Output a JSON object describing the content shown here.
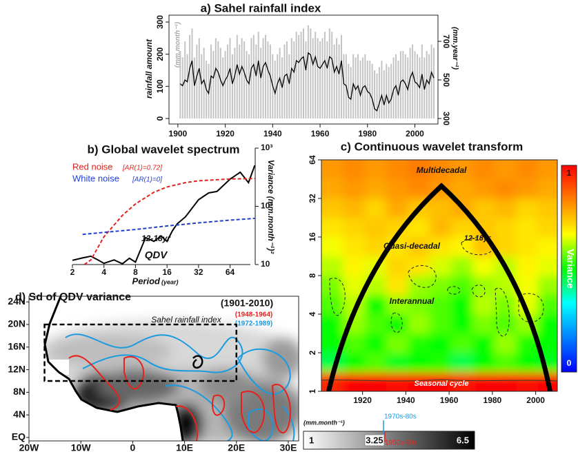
{
  "chart_data": [
    {
      "type": "line",
      "title": "a) Sahel rainfall index",
      "ylabel": "rainfall amount",
      "ylabel_unit": "(mm.month⁻¹)",
      "y2label": "(mm.year⁻¹)",
      "x": [
        1901,
        1902,
        1903,
        1904,
        1905,
        1906,
        1907,
        1908,
        1909,
        1910,
        1911,
        1912,
        1913,
        1914,
        1915,
        1916,
        1917,
        1918,
        1919,
        1920,
        1921,
        1922,
        1923,
        1924,
        1925,
        1926,
        1927,
        1928,
        1929,
        1930,
        1931,
        1932,
        1933,
        1934,
        1935,
        1936,
        1937,
        1938,
        1939,
        1940,
        1941,
        1942,
        1943,
        1944,
        1945,
        1946,
        1947,
        1948,
        1949,
        1950,
        1951,
        1952,
        1953,
        1954,
        1955,
        1956,
        1957,
        1958,
        1959,
        1960,
        1961,
        1962,
        1963,
        1964,
        1965,
        1966,
        1967,
        1968,
        1969,
        1970,
        1971,
        1972,
        1973,
        1974,
        1975,
        1976,
        1977,
        1978,
        1979,
        1980,
        1981,
        1982,
        1983,
        1984,
        1985,
        1986,
        1987,
        1988,
        1989,
        1990,
        1991,
        1992,
        1993,
        1994,
        1995,
        1996,
        1997,
        1998,
        1999,
        2000,
        2001,
        2002,
        2003,
        2004,
        2005,
        2006,
        2007,
        2008
      ],
      "series": [
        {
          "kind": "bar",
          "color": "#c4c4c4",
          "values": [
            210,
            190,
            240,
            200,
            260,
            280,
            190,
            230,
            250,
            200,
            220,
            180,
            170,
            230,
            210,
            250,
            240,
            220,
            190,
            210,
            230,
            250,
            200,
            220,
            260,
            230,
            250,
            240,
            210,
            200,
            250,
            260,
            230,
            270,
            220,
            250,
            260,
            240,
            230,
            200,
            180,
            200,
            220,
            190,
            230,
            240,
            200,
            250,
            240,
            270,
            260,
            270,
            280,
            240,
            290,
            280,
            250,
            270,
            250,
            240,
            250,
            270,
            240,
            280,
            270,
            230,
            250,
            230,
            260,
            200,
            200,
            170,
            160,
            200,
            190,
            200,
            180,
            190,
            200,
            180,
            180,
            170,
            150,
            140,
            160,
            180,
            150,
            170,
            160,
            170,
            190,
            200,
            180,
            210,
            210,
            200,
            190,
            220,
            230,
            210,
            200,
            190,
            230,
            190,
            210,
            200,
            230,
            220
          ]
        },
        {
          "kind": "line",
          "axis": "y2",
          "color": "#000000",
          "values": [
            480,
            470,
            500,
            490,
            560,
            600,
            470,
            520,
            560,
            480,
            500,
            450,
            430,
            520,
            510,
            560,
            540,
            500,
            470,
            500,
            520,
            560,
            480,
            520,
            580,
            530,
            570,
            540,
            500,
            480,
            560,
            580,
            520,
            600,
            510,
            570,
            590,
            550,
            520,
            470,
            430,
            480,
            510,
            460,
            520,
            530,
            480,
            560,
            540,
            600,
            590,
            610,
            620,
            550,
            640,
            630,
            580,
            620,
            570,
            560,
            580,
            600,
            560,
            620,
            610,
            540,
            570,
            530,
            600,
            480,
            470,
            410,
            400,
            480,
            450,
            470,
            420,
            460,
            470,
            440,
            430,
            400,
            350,
            340,
            380,
            420,
            370,
            420,
            380,
            400,
            450,
            470,
            420,
            490,
            500,
            480,
            450,
            510,
            540,
            490,
            480,
            460,
            530,
            450,
            500,
            480,
            540,
            510
          ]
        }
      ],
      "xlim": [
        1898,
        2008
      ],
      "xticks": [
        1900,
        1920,
        1940,
        1960,
        1980,
        2000
      ],
      "ylim": [
        0,
        300
      ],
      "yticks": [
        0,
        100,
        200,
        300
      ],
      "y2lim": [
        300,
        800
      ],
      "y2ticks": [
        300,
        500,
        700
      ]
    },
    {
      "type": "line",
      "title": "b) Global wavelet spectrum",
      "xlabel": "Period",
      "xlabel_unit": "(year)",
      "ylabel": "Variance (mm.month⁻¹)²",
      "xscale": "log",
      "yscale": "log",
      "series": [
        {
          "kind": "line",
          "color": "#000000",
          "x": [
            2,
            2.5,
            3,
            3.5,
            4,
            5,
            6,
            7,
            8,
            10,
            12,
            14,
            16,
            18,
            20,
            24,
            32,
            40,
            48,
            64,
            80,
            96,
            110
          ],
          "values": [
            11.8,
            13,
            13.9,
            12,
            10.5,
            12,
            10.3,
            12.8,
            11,
            29,
            25,
            31,
            25,
            38,
            50,
            66,
            130,
            170,
            180,
            293,
            385,
            255,
            505
          ]
        },
        {
          "kind": "line",
          "dash": true,
          "name": "Red noise",
          "legend_detail": "[AR(1)=0.72]",
          "color": "#e8201c",
          "x": [
            2.6,
            3,
            4,
            6,
            8,
            12,
            16,
            24,
            32,
            64,
            110
          ],
          "values": [
            10,
            12,
            30,
            70,
            110,
            175,
            215,
            255,
            275,
            295,
            300
          ]
        },
        {
          "kind": "line",
          "dash": true,
          "name": "White noise",
          "legend_detail": "[AR(1)=0]",
          "color": "#1f3fd6",
          "x": [
            2.5,
            8,
            16,
            32,
            64,
            110
          ],
          "values": [
            33,
            40,
            46,
            52,
            58,
            62
          ]
        }
      ],
      "annotations": [
        "12-18yr",
        "QDV"
      ],
      "xlim": [
        2,
        100
      ],
      "xticks": [
        2,
        4,
        8,
        16,
        32,
        64
      ],
      "ylim": [
        10,
        1000
      ],
      "yticks": [
        10,
        {
          "value": 100,
          "label": "10²"
        },
        {
          "value": 1000,
          "label": "10³"
        }
      ]
    },
    {
      "type": "heatmap",
      "title": "c) Continuous wavelet transform",
      "colorbar_label": "Variance",
      "colors": [
        "#0000ff",
        "#0080ff",
        "#00ffff",
        "#00ff00",
        "#ffff00",
        "#ff8000",
        "#ff0000"
      ],
      "clim": [
        0,
        1
      ],
      "cticks": [
        0,
        1
      ],
      "x_edges": [
        1901,
        1911,
        1921,
        1931,
        1941,
        1951,
        1961,
        1971,
        1981,
        1991,
        2001,
        2010
      ],
      "y_edges": [
        1,
        1.41,
        2,
        2.83,
        4,
        5.66,
        8,
        11.3,
        16,
        22.6,
        32,
        45.3,
        64
      ],
      "z": [
        [
          0.95,
          1,
          1,
          0.98,
          1,
          1,
          0.97,
          1,
          1,
          0.98,
          1
        ],
        [
          0.45,
          0.5,
          0.55,
          0.48,
          0.5,
          0.52,
          0.45,
          0.5,
          0.55,
          0.5,
          0.48
        ],
        [
          0.5,
          0.55,
          0.5,
          0.58,
          0.52,
          0.5,
          0.55,
          0.5,
          0.6,
          0.52,
          0.5
        ],
        [
          0.5,
          0.6,
          0.55,
          0.5,
          0.6,
          0.55,
          0.5,
          0.58,
          0.55,
          0.6,
          0.5
        ],
        [
          0.55,
          0.62,
          0.5,
          0.6,
          0.58,
          0.55,
          0.5,
          0.62,
          0.58,
          0.65,
          0.55
        ],
        [
          0.58,
          0.65,
          0.62,
          0.7,
          0.6,
          0.58,
          0.55,
          0.6,
          0.62,
          0.66,
          0.6
        ],
        [
          0.62,
          0.68,
          0.65,
          0.72,
          0.7,
          0.64,
          0.6,
          0.66,
          0.62,
          0.68,
          0.65
        ],
        [
          0.66,
          0.7,
          0.72,
          0.7,
          0.74,
          0.7,
          0.68,
          0.75,
          0.72,
          0.7,
          0.68
        ],
        [
          0.7,
          0.72,
          0.74,
          0.72,
          0.7,
          0.76,
          0.72,
          0.74,
          0.72,
          0.7,
          0.72
        ],
        [
          0.74,
          0.76,
          0.72,
          0.78,
          0.74,
          0.75,
          0.78,
          0.74,
          0.76,
          0.72,
          0.74
        ],
        [
          0.78,
          0.8,
          0.78,
          0.8,
          0.82,
          0.8,
          0.78,
          0.8,
          0.82,
          0.8,
          0.78
        ],
        [
          0.8,
          0.82,
          0.8,
          0.82,
          0.84,
          0.82,
          0.8,
          0.82,
          0.8,
          0.82,
          0.8
        ]
      ],
      "annotations": [
        "Multidecadal",
        "12-18yr",
        "Quasi-decadal",
        "Interannual",
        "Seasonal cycle"
      ],
      "xlim": [
        1901,
        2010
      ],
      "xticks": [
        1920,
        1940,
        1960,
        1980,
        2000
      ],
      "ylim": [
        1,
        64
      ],
      "yscale": "log",
      "yticks": [
        1,
        2,
        4,
        8,
        16,
        32,
        64
      ]
    },
    {
      "type": "map",
      "title": "d) Sd of QDV variance",
      "period": "(1901-2010)",
      "periods": [
        {
          "label": "(1948-1964)",
          "color": "#e8201c"
        },
        {
          "label": "(1972-1989)",
          "color": "#1a9be0"
        }
      ],
      "box_label": "Sahel rainfall index",
      "box": {
        "lon": [
          -17,
          20
        ],
        "lat": [
          10,
          20
        ]
      },
      "colorbar_label": "(mm.month⁻¹)",
      "clim": [
        1,
        6.5
      ],
      "cticks": [
        1,
        3.25,
        6.5
      ],
      "colorbar_marks": [
        "1970s-80s",
        "1950s-60s"
      ],
      "xlim": [
        -20,
        32
      ],
      "xticks": [
        {
          "value": -20,
          "label": "20W"
        },
        {
          "value": -10,
          "label": "10W"
        },
        0,
        {
          "value": 10,
          "label": "10E"
        },
        {
          "value": 20,
          "label": "20E"
        },
        {
          "value": 30,
          "label": "30E"
        }
      ],
      "ylim": [
        0,
        25
      ],
      "yticks": [
        {
          "value": 0,
          "label": "EQ"
        },
        {
          "value": 4,
          "label": "4N"
        },
        {
          "value": 8,
          "label": "8N"
        },
        {
          "value": 12,
          "label": "12N"
        },
        {
          "value": 16,
          "label": "16N"
        },
        {
          "value": 20,
          "label": "20N"
        },
        {
          "value": 24,
          "label": "24N"
        }
      ]
    }
  ]
}
